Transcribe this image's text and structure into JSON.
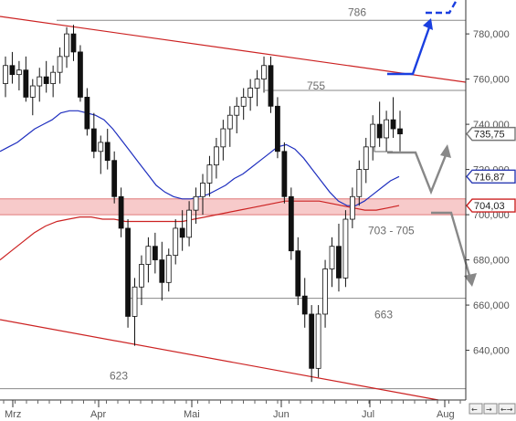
{
  "chart_data": {
    "type": "candlestick",
    "instrument_last": "735,75",
    "y_axis": {
      "ylim": [
        618,
        795
      ],
      "ticks": [
        {
          "value": 780,
          "label": "780,000"
        },
        {
          "value": 760,
          "label": "760,000"
        },
        {
          "value": 740,
          "label": "740,000"
        },
        {
          "value": 720,
          "label": "720,000"
        },
        {
          "value": 700,
          "label": "700,000"
        },
        {
          "value": 680,
          "label": "680,000"
        },
        {
          "value": 660,
          "label": "660,000"
        },
        {
          "value": 640,
          "label": "640,000"
        }
      ]
    },
    "x_axis": {
      "labels": [
        "Mrz",
        "Apr",
        "Mai",
        "Jun",
        "Jul",
        "Aug"
      ]
    },
    "price_tags": [
      {
        "value": 735.75,
        "label": "735,75",
        "color": "#777777"
      },
      {
        "value": 716.87,
        "label": "716,87",
        "color": "#2b3bb3"
      },
      {
        "value": 704.03,
        "label": "704,03",
        "color": "#cc2222"
      }
    ],
    "levels": [
      {
        "value": 786,
        "label": "786",
        "x_from": "Mrz",
        "x_to": "right-edge"
      },
      {
        "value": 755,
        "label": "755",
        "x_from": "Jun",
        "x_to": "right-edge"
      },
      {
        "value": 663,
        "label": "663",
        "x_from": "Apr",
        "x_to": "right-edge"
      },
      {
        "value": 623,
        "label": "623",
        "x_from": "Mrz",
        "x_to": "Aug"
      }
    ],
    "support_zone": {
      "low": 701,
      "high": 705,
      "label": "703 - 705",
      "color": "#f4b8b8"
    },
    "trend_lines": [
      {
        "name": "upper-channel",
        "from": {
          "x": 0,
          "y": 790
        },
        "to": {
          "x": 130,
          "y": 756
        }
      },
      {
        "name": "lower-channel",
        "from": {
          "x": 0,
          "y": 650
        },
        "to": {
          "x": 130,
          "y": 619
        }
      }
    ],
    "moving_averages": [
      {
        "name": "MA-short",
        "color": "#1f2fbf",
        "values": [
          728,
          730,
          732,
          735,
          738,
          740,
          742,
          745,
          746,
          746,
          745,
          744,
          742,
          738,
          733,
          728,
          723,
          718,
          713,
          710,
          708,
          707,
          707,
          708,
          709,
          711,
          713,
          716,
          718,
          721,
          724,
          727,
          730,
          731,
          729,
          725,
          720,
          715,
          710,
          706,
          704,
          704,
          706,
          709,
          712,
          715,
          716.87
        ]
      },
      {
        "name": "MA-long",
        "color": "#cc2222",
        "values": [
          680,
          684,
          688,
          692,
          695,
          697,
          698,
          699,
          699,
          698,
          698,
          697,
          697,
          697,
          697,
          697,
          697,
          698,
          699,
          700,
          701,
          702,
          703,
          704,
          705,
          706,
          706,
          706,
          706,
          705,
          704,
          703,
          702,
          702,
          703,
          704.03
        ]
      }
    ],
    "candles": [
      {
        "o": 758,
        "h": 770,
        "l": 752,
        "c": 766
      },
      {
        "o": 766,
        "h": 772,
        "l": 758,
        "c": 762
      },
      {
        "o": 762,
        "h": 768,
        "l": 755,
        "c": 764
      },
      {
        "o": 764,
        "h": 770,
        "l": 750,
        "c": 752
      },
      {
        "o": 752,
        "h": 760,
        "l": 744,
        "c": 757
      },
      {
        "o": 757,
        "h": 765,
        "l": 750,
        "c": 761
      },
      {
        "o": 761,
        "h": 768,
        "l": 754,
        "c": 758
      },
      {
        "o": 758,
        "h": 766,
        "l": 752,
        "c": 763
      },
      {
        "o": 763,
        "h": 774,
        "l": 758,
        "c": 770
      },
      {
        "o": 770,
        "h": 783,
        "l": 765,
        "c": 780
      },
      {
        "o": 780,
        "h": 784,
        "l": 768,
        "c": 772
      },
      {
        "o": 772,
        "h": 775,
        "l": 750,
        "c": 752
      },
      {
        "o": 752,
        "h": 756,
        "l": 735,
        "c": 738
      },
      {
        "o": 738,
        "h": 745,
        "l": 725,
        "c": 728
      },
      {
        "o": 728,
        "h": 735,
        "l": 718,
        "c": 732
      },
      {
        "o": 732,
        "h": 738,
        "l": 720,
        "c": 724
      },
      {
        "o": 724,
        "h": 728,
        "l": 705,
        "c": 708
      },
      {
        "o": 708,
        "h": 712,
        "l": 690,
        "c": 694
      },
      {
        "o": 694,
        "h": 698,
        "l": 650,
        "c": 655
      },
      {
        "o": 655,
        "h": 672,
        "l": 642,
        "c": 668
      },
      {
        "o": 668,
        "h": 682,
        "l": 660,
        "c": 678
      },
      {
        "o": 678,
        "h": 690,
        "l": 670,
        "c": 686
      },
      {
        "o": 686,
        "h": 692,
        "l": 674,
        "c": 680
      },
      {
        "o": 680,
        "h": 688,
        "l": 662,
        "c": 670
      },
      {
        "o": 670,
        "h": 685,
        "l": 666,
        "c": 682
      },
      {
        "o": 682,
        "h": 698,
        "l": 678,
        "c": 694
      },
      {
        "o": 694,
        "h": 702,
        "l": 684,
        "c": 690
      },
      {
        "o": 690,
        "h": 706,
        "l": 686,
        "c": 702
      },
      {
        "o": 702,
        "h": 712,
        "l": 696,
        "c": 708
      },
      {
        "o": 708,
        "h": 718,
        "l": 700,
        "c": 714
      },
      {
        "o": 714,
        "h": 726,
        "l": 708,
        "c": 722
      },
      {
        "o": 722,
        "h": 734,
        "l": 716,
        "c": 730
      },
      {
        "o": 730,
        "h": 742,
        "l": 724,
        "c": 738
      },
      {
        "o": 738,
        "h": 748,
        "l": 730,
        "c": 744
      },
      {
        "o": 744,
        "h": 752,
        "l": 736,
        "c": 748
      },
      {
        "o": 748,
        "h": 756,
        "l": 742,
        "c": 752
      },
      {
        "o": 752,
        "h": 760,
        "l": 746,
        "c": 756
      },
      {
        "o": 756,
        "h": 764,
        "l": 748,
        "c": 760
      },
      {
        "o": 760,
        "h": 770,
        "l": 754,
        "c": 766
      },
      {
        "o": 766,
        "h": 770,
        "l": 745,
        "c": 748
      },
      {
        "o": 748,
        "h": 752,
        "l": 725,
        "c": 728
      },
      {
        "o": 728,
        "h": 732,
        "l": 705,
        "c": 708
      },
      {
        "o": 708,
        "h": 712,
        "l": 680,
        "c": 684
      },
      {
        "o": 684,
        "h": 690,
        "l": 660,
        "c": 664
      },
      {
        "o": 664,
        "h": 672,
        "l": 650,
        "c": 656
      },
      {
        "o": 656,
        "h": 660,
        "l": 626,
        "c": 632
      },
      {
        "o": 632,
        "h": 660,
        "l": 628,
        "c": 656
      },
      {
        "o": 656,
        "h": 680,
        "l": 650,
        "c": 676
      },
      {
        "o": 676,
        "h": 690,
        "l": 668,
        "c": 686
      },
      {
        "o": 686,
        "h": 696,
        "l": 666,
        "c": 672
      },
      {
        "o": 672,
        "h": 702,
        "l": 668,
        "c": 698
      },
      {
        "o": 698,
        "h": 712,
        "l": 694,
        "c": 708
      },
      {
        "o": 708,
        "h": 724,
        "l": 704,
        "c": 720
      },
      {
        "o": 720,
        "h": 734,
        "l": 714,
        "c": 730
      },
      {
        "o": 730,
        "h": 744,
        "l": 724,
        "c": 740
      },
      {
        "o": 740,
        "h": 750,
        "l": 730,
        "c": 734
      },
      {
        "o": 734,
        "h": 746,
        "l": 728,
        "c": 742
      },
      {
        "o": 742,
        "h": 752,
        "l": 734,
        "c": 738
      },
      {
        "o": 738,
        "h": 746,
        "l": 728,
        "c": 735.75
      }
    ],
    "projection_arrows": [
      {
        "name": "bull-scenario",
        "color": "#1a3fe0"
      },
      {
        "name": "base-scenario",
        "color": "#888888"
      },
      {
        "name": "bear-scenario",
        "color": "#888888"
      }
    ]
  }
}
